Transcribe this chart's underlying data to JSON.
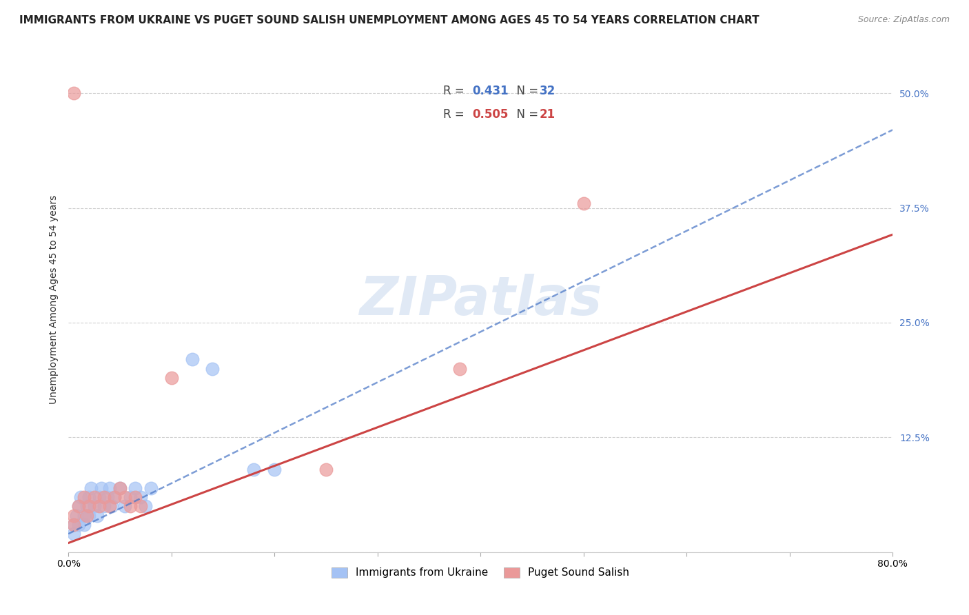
{
  "title": "IMMIGRANTS FROM UKRAINE VS PUGET SOUND SALISH UNEMPLOYMENT AMONG AGES 45 TO 54 YEARS CORRELATION CHART",
  "source": "Source: ZipAtlas.com",
  "ylabel": "Unemployment Among Ages 45 to 54 years",
  "xlim": [
    0.0,
    0.8
  ],
  "ylim": [
    0.0,
    0.55
  ],
  "xticks": [
    0.0,
    0.1,
    0.2,
    0.3,
    0.4,
    0.5,
    0.6,
    0.7,
    0.8
  ],
  "xticklabels_show": [
    0.0,
    0.8
  ],
  "yticks": [
    0.0,
    0.125,
    0.25,
    0.375,
    0.5
  ],
  "yticklabels": [
    "",
    "12.5%",
    "25.0%",
    "37.5%",
    "50.0%"
  ],
  "watermark": "ZIPatlas",
  "legend_blue_r": "0.431",
  "legend_blue_n": "32",
  "legend_pink_r": "0.505",
  "legend_pink_n": "21",
  "blue_color": "#a4c2f4",
  "pink_color": "#ea9999",
  "blue_line_color": "#4472c4",
  "pink_line_color": "#cc4444",
  "blue_scatter": [
    [
      0.005,
      0.03
    ],
    [
      0.008,
      0.04
    ],
    [
      0.01,
      0.05
    ],
    [
      0.012,
      0.06
    ],
    [
      0.015,
      0.04
    ],
    [
      0.018,
      0.05
    ],
    [
      0.02,
      0.06
    ],
    [
      0.022,
      0.07
    ],
    [
      0.025,
      0.05
    ],
    [
      0.028,
      0.04
    ],
    [
      0.03,
      0.06
    ],
    [
      0.032,
      0.07
    ],
    [
      0.035,
      0.05
    ],
    [
      0.038,
      0.06
    ],
    [
      0.04,
      0.07
    ],
    [
      0.042,
      0.05
    ],
    [
      0.045,
      0.06
    ],
    [
      0.05,
      0.07
    ],
    [
      0.055,
      0.05
    ],
    [
      0.06,
      0.06
    ],
    [
      0.065,
      0.07
    ],
    [
      0.07,
      0.06
    ],
    [
      0.075,
      0.05
    ],
    [
      0.08,
      0.07
    ],
    [
      0.12,
      0.21
    ],
    [
      0.14,
      0.2
    ],
    [
      0.18,
      0.09
    ],
    [
      0.2,
      0.09
    ],
    [
      0.005,
      0.02
    ],
    [
      0.01,
      0.03
    ],
    [
      0.015,
      0.03
    ],
    [
      0.02,
      0.04
    ]
  ],
  "pink_scatter": [
    [
      0.005,
      0.04
    ],
    [
      0.01,
      0.05
    ],
    [
      0.015,
      0.06
    ],
    [
      0.018,
      0.04
    ],
    [
      0.02,
      0.05
    ],
    [
      0.025,
      0.06
    ],
    [
      0.03,
      0.05
    ],
    [
      0.035,
      0.06
    ],
    [
      0.04,
      0.05
    ],
    [
      0.045,
      0.06
    ],
    [
      0.05,
      0.07
    ],
    [
      0.055,
      0.06
    ],
    [
      0.06,
      0.05
    ],
    [
      0.065,
      0.06
    ],
    [
      0.07,
      0.05
    ],
    [
      0.1,
      0.19
    ],
    [
      0.25,
      0.09
    ],
    [
      0.5,
      0.38
    ],
    [
      0.005,
      0.5
    ],
    [
      0.38,
      0.2
    ],
    [
      0.005,
      0.03
    ]
  ],
  "blue_reg_intercept": 0.02,
  "blue_reg_slope": 0.55,
  "pink_reg_intercept": 0.01,
  "pink_reg_slope": 0.42,
  "background_color": "#ffffff",
  "grid_color": "#d0d0d0",
  "title_fontsize": 11,
  "tick_fontsize": 10,
  "legend_fontsize": 12
}
